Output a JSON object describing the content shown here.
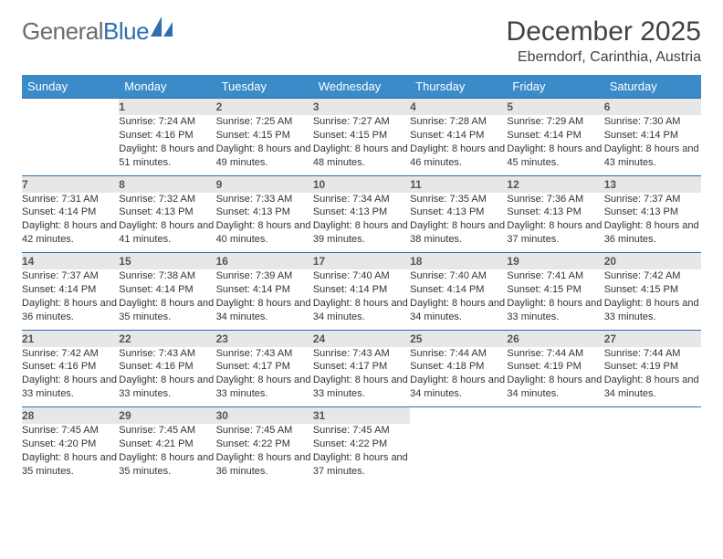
{
  "logo": {
    "part1": "General",
    "part2": "Blue"
  },
  "title": {
    "month": "December 2025",
    "location": "Eberndorf, Carinthia, Austria"
  },
  "colors": {
    "header_bg": "#3b8bc9",
    "header_text": "#ffffff",
    "daynum_bg": "#e7e7e7",
    "daynum_border": "#2f6fb0",
    "body_text": "#333333",
    "logo_gray": "#6b6b6b",
    "logo_blue": "#2f6fb0"
  },
  "layout": {
    "columns": 7,
    "rows": 5,
    "start_day_index": 1
  },
  "weekdays": [
    "Sunday",
    "Monday",
    "Tuesday",
    "Wednesday",
    "Thursday",
    "Friday",
    "Saturday"
  ],
  "cells": [
    [
      null,
      {
        "day": "1",
        "sunrise": "Sunrise: 7:24 AM",
        "sunset": "Sunset: 4:16 PM",
        "daylight": "Daylight: 8 hours and 51 minutes."
      },
      {
        "day": "2",
        "sunrise": "Sunrise: 7:25 AM",
        "sunset": "Sunset: 4:15 PM",
        "daylight": "Daylight: 8 hours and 49 minutes."
      },
      {
        "day": "3",
        "sunrise": "Sunrise: 7:27 AM",
        "sunset": "Sunset: 4:15 PM",
        "daylight": "Daylight: 8 hours and 48 minutes."
      },
      {
        "day": "4",
        "sunrise": "Sunrise: 7:28 AM",
        "sunset": "Sunset: 4:14 PM",
        "daylight": "Daylight: 8 hours and 46 minutes."
      },
      {
        "day": "5",
        "sunrise": "Sunrise: 7:29 AM",
        "sunset": "Sunset: 4:14 PM",
        "daylight": "Daylight: 8 hours and 45 minutes."
      },
      {
        "day": "6",
        "sunrise": "Sunrise: 7:30 AM",
        "sunset": "Sunset: 4:14 PM",
        "daylight": "Daylight: 8 hours and 43 minutes."
      }
    ],
    [
      {
        "day": "7",
        "sunrise": "Sunrise: 7:31 AM",
        "sunset": "Sunset: 4:14 PM",
        "daylight": "Daylight: 8 hours and 42 minutes."
      },
      {
        "day": "8",
        "sunrise": "Sunrise: 7:32 AM",
        "sunset": "Sunset: 4:13 PM",
        "daylight": "Daylight: 8 hours and 41 minutes."
      },
      {
        "day": "9",
        "sunrise": "Sunrise: 7:33 AM",
        "sunset": "Sunset: 4:13 PM",
        "daylight": "Daylight: 8 hours and 40 minutes."
      },
      {
        "day": "10",
        "sunrise": "Sunrise: 7:34 AM",
        "sunset": "Sunset: 4:13 PM",
        "daylight": "Daylight: 8 hours and 39 minutes."
      },
      {
        "day": "11",
        "sunrise": "Sunrise: 7:35 AM",
        "sunset": "Sunset: 4:13 PM",
        "daylight": "Daylight: 8 hours and 38 minutes."
      },
      {
        "day": "12",
        "sunrise": "Sunrise: 7:36 AM",
        "sunset": "Sunset: 4:13 PM",
        "daylight": "Daylight: 8 hours and 37 minutes."
      },
      {
        "day": "13",
        "sunrise": "Sunrise: 7:37 AM",
        "sunset": "Sunset: 4:13 PM",
        "daylight": "Daylight: 8 hours and 36 minutes."
      }
    ],
    [
      {
        "day": "14",
        "sunrise": "Sunrise: 7:37 AM",
        "sunset": "Sunset: 4:14 PM",
        "daylight": "Daylight: 8 hours and 36 minutes."
      },
      {
        "day": "15",
        "sunrise": "Sunrise: 7:38 AM",
        "sunset": "Sunset: 4:14 PM",
        "daylight": "Daylight: 8 hours and 35 minutes."
      },
      {
        "day": "16",
        "sunrise": "Sunrise: 7:39 AM",
        "sunset": "Sunset: 4:14 PM",
        "daylight": "Daylight: 8 hours and 34 minutes."
      },
      {
        "day": "17",
        "sunrise": "Sunrise: 7:40 AM",
        "sunset": "Sunset: 4:14 PM",
        "daylight": "Daylight: 8 hours and 34 minutes."
      },
      {
        "day": "18",
        "sunrise": "Sunrise: 7:40 AM",
        "sunset": "Sunset: 4:14 PM",
        "daylight": "Daylight: 8 hours and 34 minutes."
      },
      {
        "day": "19",
        "sunrise": "Sunrise: 7:41 AM",
        "sunset": "Sunset: 4:15 PM",
        "daylight": "Daylight: 8 hours and 33 minutes."
      },
      {
        "day": "20",
        "sunrise": "Sunrise: 7:42 AM",
        "sunset": "Sunset: 4:15 PM",
        "daylight": "Daylight: 8 hours and 33 minutes."
      }
    ],
    [
      {
        "day": "21",
        "sunrise": "Sunrise: 7:42 AM",
        "sunset": "Sunset: 4:16 PM",
        "daylight": "Daylight: 8 hours and 33 minutes."
      },
      {
        "day": "22",
        "sunrise": "Sunrise: 7:43 AM",
        "sunset": "Sunset: 4:16 PM",
        "daylight": "Daylight: 8 hours and 33 minutes."
      },
      {
        "day": "23",
        "sunrise": "Sunrise: 7:43 AM",
        "sunset": "Sunset: 4:17 PM",
        "daylight": "Daylight: 8 hours and 33 minutes."
      },
      {
        "day": "24",
        "sunrise": "Sunrise: 7:43 AM",
        "sunset": "Sunset: 4:17 PM",
        "daylight": "Daylight: 8 hours and 33 minutes."
      },
      {
        "day": "25",
        "sunrise": "Sunrise: 7:44 AM",
        "sunset": "Sunset: 4:18 PM",
        "daylight": "Daylight: 8 hours and 34 minutes."
      },
      {
        "day": "26",
        "sunrise": "Sunrise: 7:44 AM",
        "sunset": "Sunset: 4:19 PM",
        "daylight": "Daylight: 8 hours and 34 minutes."
      },
      {
        "day": "27",
        "sunrise": "Sunrise: 7:44 AM",
        "sunset": "Sunset: 4:19 PM",
        "daylight": "Daylight: 8 hours and 34 minutes."
      }
    ],
    [
      {
        "day": "28",
        "sunrise": "Sunrise: 7:45 AM",
        "sunset": "Sunset: 4:20 PM",
        "daylight": "Daylight: 8 hours and 35 minutes."
      },
      {
        "day": "29",
        "sunrise": "Sunrise: 7:45 AM",
        "sunset": "Sunset: 4:21 PM",
        "daylight": "Daylight: 8 hours and 35 minutes."
      },
      {
        "day": "30",
        "sunrise": "Sunrise: 7:45 AM",
        "sunset": "Sunset: 4:22 PM",
        "daylight": "Daylight: 8 hours and 36 minutes."
      },
      {
        "day": "31",
        "sunrise": "Sunrise: 7:45 AM",
        "sunset": "Sunset: 4:22 PM",
        "daylight": "Daylight: 8 hours and 37 minutes."
      },
      null,
      null,
      null
    ]
  ]
}
